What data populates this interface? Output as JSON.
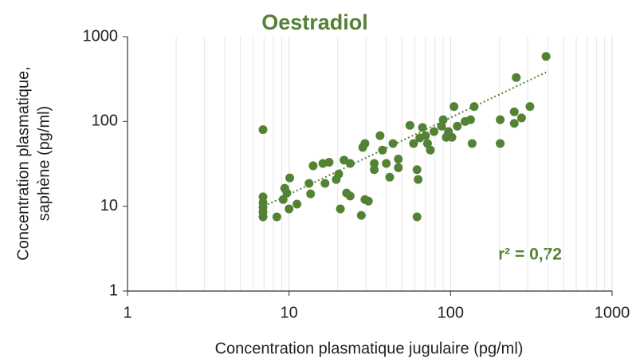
{
  "chart_data": {
    "type": "scatter",
    "title": "Oestradiol",
    "xlabel": "Concentration plasmatique jugulaire (pg/ml)",
    "ylabel": [
      "Concentration plasmatique,",
      "saphène (pg/ml)"
    ],
    "annotation": "r² = 0,72",
    "color": "#548235",
    "xscale": "log",
    "yscale": "log",
    "xlim": [
      1,
      1000
    ],
    "ylim": [
      1,
      1000
    ],
    "xticks": [
      1,
      10,
      100,
      1000
    ],
    "yticks": [
      1,
      10,
      100,
      1000
    ],
    "xminorticks": [
      2,
      3,
      4,
      5,
      6,
      7,
      8,
      9,
      20,
      30,
      40,
      50,
      60,
      70,
      80,
      90,
      200,
      300,
      400,
      500,
      600,
      700,
      800,
      900
    ],
    "grid": true,
    "x": [
      6.9,
      6.9,
      6.9,
      6.9,
      6.9,
      6.9,
      8.4,
      9.2,
      9.4,
      9.7,
      10.1,
      10,
      11.2,
      13.3,
      13.6,
      14.1,
      16.2,
      16.7,
      17.7,
      19.6,
      20.3,
      20.8,
      21.9,
      22.7,
      23.9,
      23.9,
      28,
      28.6,
      29.5,
      29.5,
      31,
      33.7,
      33.7,
      36.6,
      37.9,
      40,
      42,
      44,
      47.5,
      47.5,
      56,
      59,
      62,
      63,
      62,
      64.5,
      67,
      70,
      72,
      75,
      79,
      88,
      90,
      94,
      97,
      102,
      105,
      110,
      123,
      133,
      140,
      136,
      203,
      203,
      248,
      248,
      255,
      275,
      310,
      390
    ],
    "values": [
      80,
      12.9,
      11,
      9.7,
      8.5,
      7.5,
      7.5,
      12,
      16.3,
      14.3,
      21.6,
      9.3,
      10.6,
      18.6,
      14,
      30,
      32,
      18.6,
      33,
      20.7,
      24,
      9.3,
      35,
      14.3,
      13.2,
      32,
      7.8,
      49.5,
      55,
      12,
      11.5,
      27,
      32,
      68,
      46,
      32,
      22,
      55,
      36,
      28.5,
      90,
      55,
      27,
      20.7,
      7.5,
      64,
      85,
      68,
      55,
      46,
      76,
      88,
      105,
      65,
      76,
      65,
      150,
      88,
      100,
      105,
      150,
      55,
      105,
      55,
      130,
      95,
      330,
      110,
      150,
      585
    ],
    "trendline": {
      "x": [
        7,
        390
      ],
      "y": [
        10,
        380
      ]
    }
  }
}
